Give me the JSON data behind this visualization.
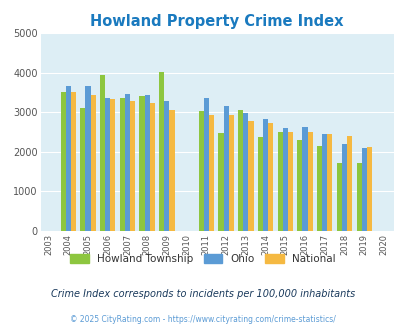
{
  "title": "Howland Property Crime Index",
  "plot_years": [
    2004,
    2005,
    2006,
    2007,
    2008,
    2009,
    2011,
    2012,
    2013,
    2014,
    2015,
    2016,
    2017,
    2018,
    2019
  ],
  "howland": [
    3500,
    3100,
    3950,
    3350,
    3400,
    4020,
    3030,
    2470,
    3060,
    2380,
    2510,
    2310,
    2150,
    1720,
    1720
  ],
  "ohio": [
    3670,
    3670,
    3360,
    3460,
    3440,
    3290,
    3370,
    3150,
    2990,
    2830,
    2610,
    2620,
    2460,
    2200,
    2090
  ],
  "national": [
    3510,
    3440,
    3340,
    3290,
    3220,
    3060,
    2940,
    2940,
    2780,
    2720,
    2510,
    2500,
    2460,
    2390,
    2130
  ],
  "howland_color": "#8dc63f",
  "ohio_color": "#5b9bd5",
  "national_color": "#f5b942",
  "bg_color": "#ddeef5",
  "ylim": [
    0,
    5000
  ],
  "yticks": [
    0,
    1000,
    2000,
    3000,
    4000,
    5000
  ],
  "all_ticks": [
    2003,
    2004,
    2005,
    2006,
    2007,
    2008,
    2009,
    2010,
    2011,
    2012,
    2013,
    2014,
    2015,
    2016,
    2017,
    2018,
    2019,
    2020
  ],
  "subtitle": "Crime Index corresponds to incidents per 100,000 inhabitants",
  "footer": "© 2025 CityRating.com - https://www.cityrating.com/crime-statistics/",
  "legend_labels": [
    "Howland Township",
    "Ohio",
    "National"
  ],
  "bar_width": 0.26
}
